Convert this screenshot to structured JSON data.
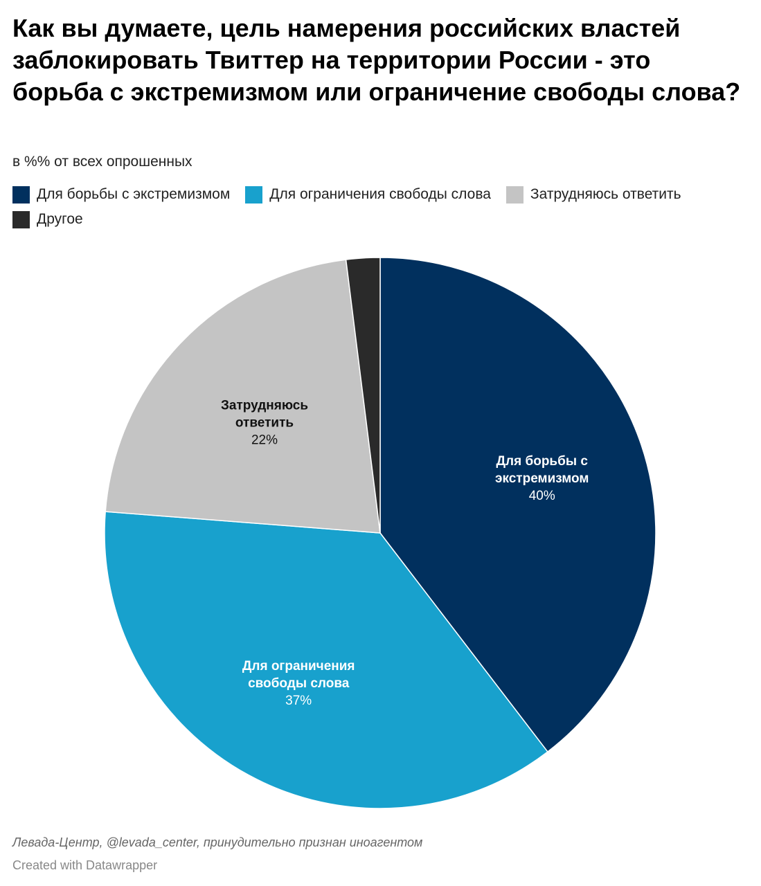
{
  "chart_data": {
    "type": "pie",
    "title": "Как вы думаете, цель намерения российских властей заблокировать Твиттер на территории России - это борьба с экстремизмом или ограничение свободы слова?",
    "subtitle": "в %% от всех опрошенных",
    "categories": [
      "Для борьбы с экстремизмом",
      "Для ограничения свободы слова",
      "Затрудняюсь ответить",
      "Другое"
    ],
    "values": [
      40,
      37,
      22,
      2
    ],
    "colors": [
      "#01305e",
      "#18a1cd",
      "#c4c4c4",
      "#2a2a2a"
    ],
    "slice_labels": [
      {
        "lines": [
          "Для борьбы с",
          "экстремизмом"
        ],
        "value_text": "40%",
        "text_color": "#ffffff"
      },
      {
        "lines": [
          "Для ограничения",
          "свободы слова"
        ],
        "value_text": "37%",
        "text_color": "#ffffff"
      },
      {
        "lines": [
          "Затрудняюсь",
          "ответить"
        ],
        "value_text": "22%",
        "text_color": "#111111"
      },
      {
        "lines": [],
        "value_text": "",
        "text_color": "#ffffff"
      }
    ],
    "legend_placement": "top-left"
  },
  "legend": {
    "items": [
      {
        "label": "Для борьбы с экстремизмом",
        "color": "#01305e"
      },
      {
        "label": "Для ограничения свободы слова",
        "color": "#18a1cd"
      },
      {
        "label": "Затрудняюсь ответить",
        "color": "#c4c4c4"
      },
      {
        "label": "Другое",
        "color": "#2a2a2a"
      }
    ]
  },
  "footer": {
    "source": "Левада-Центр, @levada_center, принудительно признан иноагентом",
    "credit": "Created with Datawrapper"
  }
}
